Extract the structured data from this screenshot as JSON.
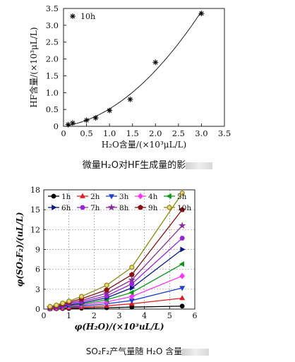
{
  "caption_top": "微量H₂O对HF生成量的影",
  "caption_bottom": "SO₂F₂产气量随 H₂O 含量",
  "chart_data": [
    {
      "type": "scatter",
      "xlabel": "H₂O含量/(×10³μL/L)",
      "ylabel": "HF含量/(×10³μL/L)",
      "xlim": [
        0,
        3.5
      ],
      "ylim": [
        0,
        3.5
      ],
      "xticks": [
        "0",
        "0.5",
        "1.0",
        "1.5",
        "2.0",
        "2.5",
        "3.0",
        "3.5"
      ],
      "yticks": [
        "0",
        "0.5",
        "1.0",
        "1.5",
        "2.0",
        "2.5",
        "3.0",
        "3.5"
      ],
      "legend": "top-left",
      "series": [
        {
          "name": "10h",
          "marker": "asterisk",
          "color": "#000000",
          "x": [
            0.1,
            0.2,
            0.5,
            0.7,
            1.0,
            1.45,
            2.0,
            3.0
          ],
          "y": [
            0.05,
            0.1,
            0.18,
            0.25,
            0.47,
            0.8,
            1.9,
            3.35
          ]
        }
      ],
      "fit_curve": true
    },
    {
      "type": "line",
      "xlabel": "φ(H₂O)/(×10³uL/L)",
      "ylabel": "φ(SO₂F₂)/(uL/L)",
      "xlim": [
        0,
        6
      ],
      "ylim": [
        0,
        18
      ],
      "xticks": [
        "0",
        "1",
        "2",
        "3",
        "4",
        "5",
        "6"
      ],
      "yticks": [
        "0",
        "3",
        "6",
        "9",
        "12",
        "15",
        "18"
      ],
      "grid": true,
      "legend": "top",
      "x": [
        0.25,
        0.5,
        0.75,
        1.0,
        1.5,
        2.5,
        3.5,
        5.5
      ],
      "series": [
        {
          "name": "1h",
          "color": "#000000",
          "marker": "circle",
          "values": [
            0.02,
            0.05,
            0.08,
            0.1,
            0.13,
            0.2,
            0.3,
            0.45
          ]
        },
        {
          "name": "2h",
          "color": "#e41a1c",
          "marker": "triangle-up",
          "values": [
            0.05,
            0.1,
            0.15,
            0.2,
            0.28,
            0.5,
            0.8,
            1.65
          ]
        },
        {
          "name": "3h",
          "color": "#1f3fd6",
          "marker": "triangle-down",
          "values": [
            0.08,
            0.15,
            0.22,
            0.3,
            0.45,
            0.8,
            1.3,
            3.2
          ]
        },
        {
          "name": "4h",
          "color": "#ff33ff",
          "marker": "diamond",
          "values": [
            0.1,
            0.2,
            0.3,
            0.4,
            0.6,
            1.1,
            1.9,
            5.0
          ]
        },
        {
          "name": "5h",
          "color": "#0a9a1a",
          "marker": "triangle-left",
          "values": [
            0.13,
            0.25,
            0.38,
            0.5,
            0.75,
            1.4,
            2.5,
            6.8
          ]
        },
        {
          "name": "6h",
          "color": "#0a1a8a",
          "marker": "triangle-right",
          "values": [
            0.16,
            0.3,
            0.45,
            0.6,
            0.9,
            1.7,
            3.2,
            9.0
          ]
        },
        {
          "name": "7h",
          "color": "#9a22dd",
          "marker": "hexagon",
          "values": [
            0.2,
            0.35,
            0.55,
            0.75,
            1.1,
            2.0,
            3.8,
            10.7
          ]
        },
        {
          "name": "8h",
          "color": "#8a2a9a",
          "marker": "star",
          "values": [
            0.24,
            0.42,
            0.65,
            0.9,
            1.3,
            2.4,
            4.4,
            12.6
          ]
        },
        {
          "name": "9h",
          "color": "#8a1010",
          "marker": "pentagon",
          "values": [
            0.3,
            0.5,
            0.75,
            1.05,
            1.55,
            2.9,
            5.2,
            15.0
          ]
        },
        {
          "name": "10h",
          "color": "#8a8a10",
          "marker": "circle-open",
          "values": [
            0.4,
            0.6,
            0.9,
            1.2,
            1.9,
            3.6,
            6.3,
            17.5
          ]
        }
      ]
    }
  ]
}
